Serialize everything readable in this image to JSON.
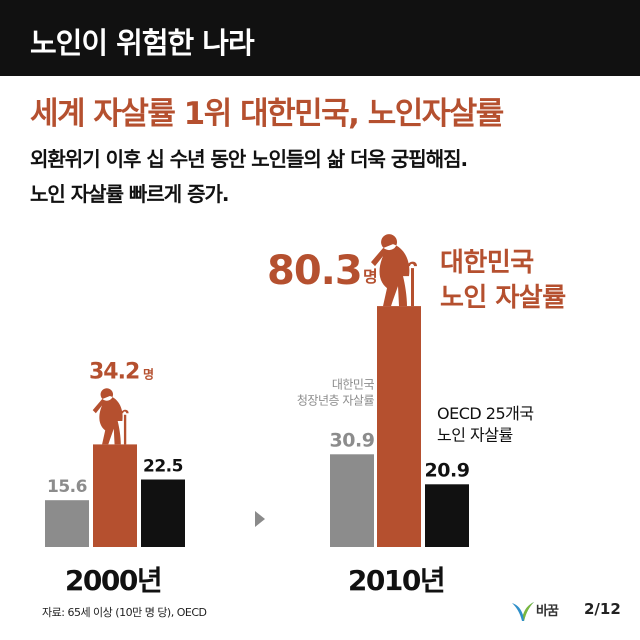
{
  "header": {
    "title": "노인이 위험한 나라"
  },
  "headline": "세계 자살률 1위 대한민국, 노인자살률",
  "subtitle_lines": [
    "외환위기 이후 십 수년 동안 노인들의 삶 더욱 궁핍해짐.",
    "노인 자살률 빠르게 증가."
  ],
  "colors": {
    "gray": "#8c8c8c",
    "rust": "#b5502f",
    "black": "#111111"
  },
  "icons": [
    "elderly-person-with-cane-icon",
    "arrow-right-icon",
    "bird-logo-icon"
  ],
  "chart_data": [
    {
      "type": "bar",
      "group_label": "2000년",
      "series": [
        {
          "value": 15.6,
          "value_label": "15.6",
          "color": "gray"
        },
        {
          "value": 34.2,
          "value_label": "34.2",
          "unit": "명",
          "color": "rust"
        },
        {
          "value": 22.5,
          "value_label": "22.5",
          "color": "black"
        }
      ]
    },
    {
      "type": "bar",
      "group_label": "2010년",
      "series": [
        {
          "value": 30.9,
          "value_label": "30.9",
          "label_lines": [
            "대한민국",
            "청장년층 자살률"
          ],
          "color": "gray"
        },
        {
          "value": 80.3,
          "value_label": "80.3",
          "unit": "명",
          "label_lines": [
            "대한민국",
            "노인 자살률"
          ],
          "color": "rust"
        },
        {
          "value": 20.9,
          "value_label": "20.9",
          "label_lines": [
            "OECD 25개국",
            "노인 자살률"
          ],
          "color": "black"
        }
      ]
    }
  ],
  "source": "자료: 65세 이상 (10만 명 당), OECD",
  "footer": {
    "logo_text": "바꿈",
    "page": "2/12"
  }
}
